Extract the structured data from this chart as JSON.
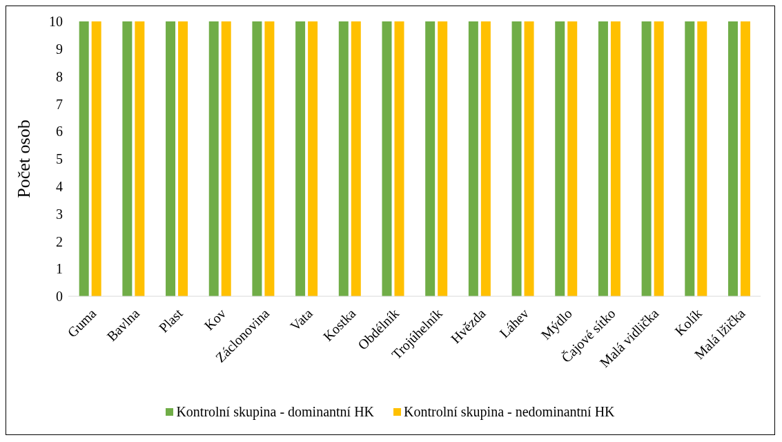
{
  "chart_data": {
    "type": "bar",
    "ylabel": "Počet osob",
    "categories": [
      "Guma",
      "Bavlna",
      "Plast",
      "Kov",
      "Záclonovina",
      "Vata",
      "Kostka",
      "Obdélník",
      "Trojúhelník",
      "Hvězda",
      "Láhev",
      "Mýdlo",
      "Čajové sítko",
      "Malá vidlička",
      "Kolík",
      "Malá lžička"
    ],
    "series": [
      {
        "name": "Kontrolní skupina - dominantní HK",
        "color": "#70ad47",
        "values": [
          10,
          10,
          10,
          10,
          10,
          10,
          10,
          10,
          10,
          10,
          10,
          10,
          10,
          10,
          10,
          10
        ]
      },
      {
        "name": "Kontrolní skupina - nedominantní HK",
        "color": "#ffc000",
        "values": [
          10,
          10,
          10,
          10,
          10,
          10,
          10,
          10,
          10,
          10,
          10,
          10,
          10,
          10,
          10,
          10
        ]
      }
    ],
    "ylim": [
      0,
      10
    ],
    "yticks": [
      0,
      1,
      2,
      3,
      4,
      5,
      6,
      7,
      8,
      9,
      10
    ],
    "grid": false,
    "legend": "bottom"
  }
}
